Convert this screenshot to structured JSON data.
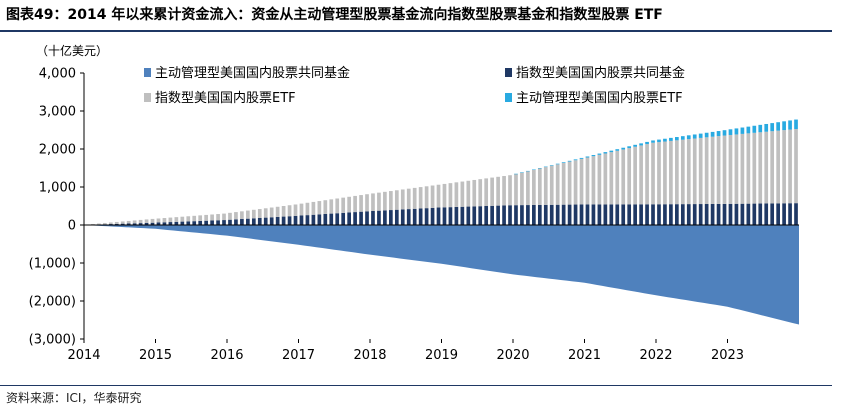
{
  "header": {
    "figure_label": "图表49：",
    "title": "2014 年以来累计资金流入：资金从主动管理型股票基金流向指数型股票基金和指数型股票 ETF"
  },
  "footer": {
    "source": "资料来源：ICI，华泰研究"
  },
  "colors": {
    "active_mf": "#4f81bd",
    "index_mf": "#1f3864",
    "index_etf": "#bfbfbf",
    "active_etf": "#29aae1",
    "axis": "#000000",
    "rule": "#1f3864"
  },
  "chart_data": {
    "type": "bar",
    "subtype": "stacked-monthly",
    "unit_label": "（十亿美元）",
    "ylim": [
      -3000,
      4000
    ],
    "yticks": [
      -3000,
      -2000,
      -1000,
      0,
      1000,
      2000,
      3000,
      4000
    ],
    "ytick_labels": [
      "(3,000)",
      "(2,000)",
      "(1,000)",
      "0",
      "1,000",
      "2,000",
      "3,000",
      "4,000"
    ],
    "xlim": [
      2014.0,
      2024.0
    ],
    "xticks": [
      2014,
      2015,
      2016,
      2017,
      2018,
      2019,
      2020,
      2021,
      2022,
      2023
    ],
    "xtick_labels": [
      "2014",
      "2015",
      "2016",
      "2017",
      "2018",
      "2019",
      "2020",
      "2021",
      "2022",
      "2023"
    ],
    "frequency": "monthly",
    "start": "2014-01",
    "end": "2023-12",
    "legend_position": "top",
    "series": [
      {
        "name": "主动管理型美国国内股票共同基金",
        "key": "active_mf",
        "render": "area",
        "anchors": {
          "x": [
            2014.0,
            2015.0,
            2016.0,
            2017.0,
            2018.0,
            2019.0,
            2020.0,
            2021.0,
            2022.0,
            2023.0,
            2024.0
          ],
          "y": [
            0,
            -100,
            -280,
            -520,
            -780,
            -1020,
            -1300,
            -1520,
            -1850,
            -2150,
            -2620
          ]
        }
      },
      {
        "name": "指数型美国国内股票共同基金",
        "key": "index_mf",
        "render": "bar",
        "anchors": {
          "x": [
            2014.0,
            2015.0,
            2016.0,
            2017.0,
            2018.0,
            2019.0,
            2020.0,
            2021.0,
            2022.0,
            2023.0,
            2024.0
          ],
          "y": [
            0,
            60,
            130,
            240,
            360,
            460,
            520,
            540,
            545,
            555,
            575
          ]
        }
      },
      {
        "name": "指数型美国国内股票ETF",
        "key": "index_etf",
        "render": "bar",
        "anchors": {
          "x": [
            2014.0,
            2015.0,
            2016.0,
            2017.0,
            2018.0,
            2019.0,
            2020.0,
            2021.0,
            2022.0,
            2023.0,
            2024.0
          ],
          "y": [
            0,
            100,
            170,
            300,
            450,
            600,
            790,
            1200,
            1620,
            1800,
            1950
          ]
        }
      },
      {
        "name": "主动管理型美国国内股票ETF",
        "key": "active_etf",
        "render": "bar",
        "anchors": {
          "x": [
            2014.0,
            2020.0,
            2021.0,
            2022.0,
            2023.0,
            2024.0
          ],
          "y": [
            0,
            0,
            25,
            60,
            140,
            250
          ]
        }
      }
    ]
  }
}
